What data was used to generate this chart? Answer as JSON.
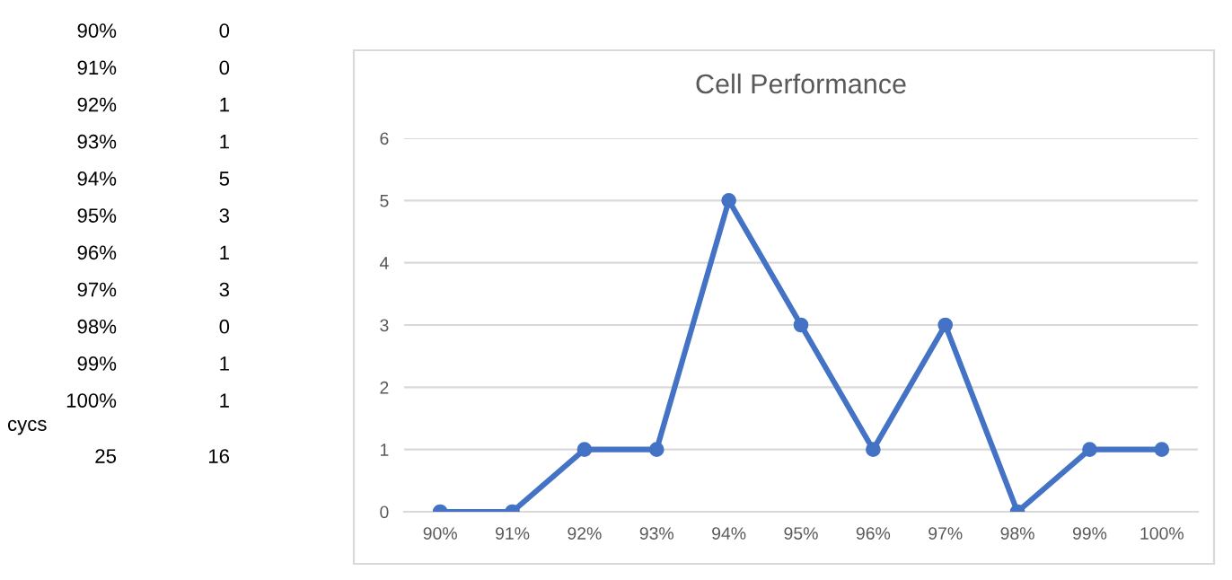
{
  "chart_data": {
    "type": "line",
    "title": "Cell Performance",
    "categories": [
      "90%",
      "91%",
      "92%",
      "93%",
      "94%",
      "95%",
      "96%",
      "97%",
      "98%",
      "99%",
      "100%"
    ],
    "values": [
      0,
      0,
      1,
      1,
      5,
      3,
      1,
      3,
      0,
      1,
      1
    ],
    "color": "#4472c4",
    "marker": "circle",
    "line_style": "solid",
    "ylim": [
      0,
      6
    ],
    "yticks": [
      0,
      1,
      2,
      3,
      4,
      5,
      6
    ],
    "grid": "y",
    "annotations": [
      "90%",
      "0",
      "91%",
      "0",
      "92%",
      "1",
      "93%",
      "1",
      "94%",
      "5",
      "95%",
      "3",
      "96%",
      "1",
      "97%",
      "3",
      "98%",
      "0",
      "99%",
      "1",
      "100%",
      "1",
      "cycs",
      "25",
      "16"
    ]
  }
}
